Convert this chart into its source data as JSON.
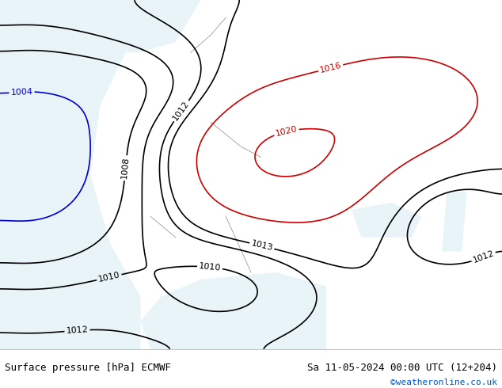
{
  "title_left": "Surface pressure [hPa] ECMWF",
  "title_right": "Sa 11-05-2024 00:00 UTC (12+204)",
  "copyright": "©weatheronline.co.uk",
  "bg_color": "#c8e6c8",
  "sea_color": "#e8f4f8",
  "land_color": "#b8d8b8",
  "border_color": "#888888",
  "footer_bg": "#ffffff",
  "isobar_black_color": "#000000",
  "isobar_red_color": "#cc0000",
  "isobar_blue_color": "#0000cc",
  "label_black": "#000000",
  "label_red": "#cc0000",
  "label_blue": "#0000cc",
  "figsize": [
    6.34,
    4.9
  ],
  "dpi": 100
}
